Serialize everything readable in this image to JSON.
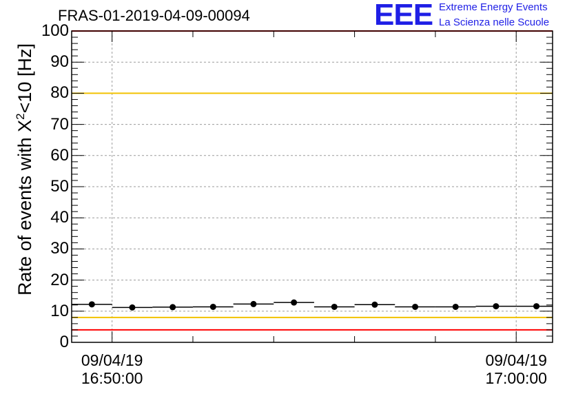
{
  "title": "FRAS-01-2019-04-09-00094",
  "logo": {
    "mark": "EEE",
    "line1": "Extreme Energy Events",
    "line2": "La Scienza nelle Scuole",
    "color": "#1f1fe6"
  },
  "chart_data": {
    "type": "scatter",
    "title": "FRAS-01-2019-04-09-00094",
    "ylabel_text": "Rate of events with X",
    "ylabel_sup": "2",
    "ylabel_rest": "<10 [Hz]",
    "ylim": [
      0,
      100
    ],
    "yticks": [
      "0",
      "10",
      "20",
      "30",
      "40",
      "50",
      "60",
      "70",
      "80",
      "90",
      "100"
    ],
    "xlim_minutes": [
      -1.0,
      10.9
    ],
    "xticks": [
      {
        "minute": 0,
        "date": "09/04/19",
        "time": "16:50:00"
      },
      {
        "minute": 10,
        "date": "09/04/19",
        "time": "17:00:00"
      }
    ],
    "grid": true,
    "x_minutes": [
      -0.5,
      0.5,
      1.5,
      2.5,
      3.5,
      4.5,
      5.5,
      6.5,
      7.5,
      8.5,
      9.5,
      10.5
    ],
    "values": [
      12.2,
      11.2,
      11.3,
      11.4,
      12.3,
      12.8,
      11.4,
      12.1,
      11.4,
      11.4,
      11.6,
      11.6
    ],
    "bin_width_minutes": 1,
    "reference_lines": [
      {
        "value": 100,
        "color": "#ff0000"
      },
      {
        "value": 80,
        "color": "#f2c200"
      },
      {
        "value": 8,
        "color": "#f2c200"
      },
      {
        "value": 4,
        "color": "#ff0000"
      }
    ]
  }
}
